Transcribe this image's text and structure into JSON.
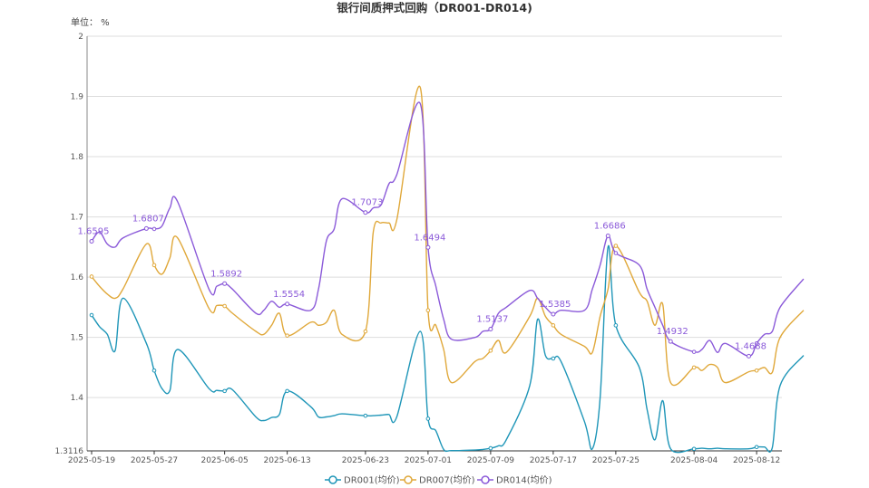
{
  "chart_data": {
    "type": "line",
    "title": "银行间质押式回购（DR001-DR014)",
    "unit_label": "单位： %",
    "ylim": [
      1.3116,
      2.0
    ],
    "yticks": [
      "1.3116",
      "1.4",
      "1.5",
      "1.6",
      "1.7",
      "1.8",
      "1.9",
      "2"
    ],
    "ytick_values": [
      1.3116,
      1.4,
      1.5,
      1.6,
      1.7,
      1.8,
      1.9,
      2.0
    ],
    "xtick_labels": [
      "2025-05-19",
      "2025-05-27",
      "2025-06-05",
      "2025-06-13",
      "2025-06-23",
      "2025-07-01",
      "2025-07-09",
      "2025-07-17",
      "2025-07-25",
      "2025-08-04",
      "2025-08-12"
    ],
    "x": [
      "2025-05-19",
      "2025-05-20",
      "2025-05-21",
      "2025-05-22",
      "2025-05-23",
      "2025-05-26",
      "2025-05-27",
      "2025-05-28",
      "2025-05-29",
      "2025-05-30",
      "2025-06-03",
      "2025-06-04",
      "2025-06-05",
      "2025-06-06",
      "2025-06-09",
      "2025-06-10",
      "2025-06-11",
      "2025-06-12",
      "2025-06-13",
      "2025-06-16",
      "2025-06-17",
      "2025-06-18",
      "2025-06-19",
      "2025-06-20",
      "2025-06-23",
      "2025-06-24",
      "2025-06-25",
      "2025-06-26",
      "2025-06-27",
      "2025-06-30",
      "2025-07-01",
      "2025-07-02",
      "2025-07-03",
      "2025-07-04",
      "2025-07-07",
      "2025-07-08",
      "2025-07-09",
      "2025-07-10",
      "2025-07-11",
      "2025-07-14",
      "2025-07-15",
      "2025-07-16",
      "2025-07-17",
      "2025-07-18",
      "2025-07-21",
      "2025-07-22",
      "2025-07-23",
      "2025-07-24",
      "2025-07-25",
      "2025-07-28",
      "2025-07-29",
      "2025-07-30",
      "2025-07-31",
      "2025-08-01",
      "2025-08-04",
      "2025-08-05",
      "2025-08-06",
      "2025-08-07",
      "2025-08-08",
      "2025-08-11",
      "2025-08-12",
      "2025-08-13",
      "2025-08-14",
      "2025-08-15",
      "2025-08-18"
    ],
    "series": [
      {
        "name": "DR001(均价)",
        "color": "#1f96b8",
        "values": [
          1.537,
          1.518,
          1.505,
          1.478,
          1.565,
          1.49,
          1.445,
          1.415,
          1.412,
          1.48,
          1.415,
          1.412,
          1.411,
          1.413,
          1.368,
          1.362,
          1.367,
          1.372,
          1.411,
          1.385,
          1.368,
          1.368,
          1.37,
          1.373,
          1.37,
          1.37,
          1.371,
          1.372,
          1.368,
          1.51,
          1.365,
          1.345,
          1.314,
          1.312,
          1.313,
          1.314,
          1.316,
          1.32,
          1.33,
          1.42,
          1.53,
          1.47,
          1.465,
          1.46,
          1.36,
          1.315,
          1.4,
          1.65,
          1.52,
          1.45,
          1.38,
          1.33,
          1.395,
          1.315,
          1.315,
          1.316,
          1.315,
          1.316,
          1.315,
          1.315,
          1.318,
          1.318,
          1.317,
          1.42,
          1.47
        ]
      },
      {
        "name": "DR007(均价)",
        "color": "#e0a83a",
        "values": [
          1.601,
          1.585,
          1.572,
          1.565,
          1.58,
          1.655,
          1.62,
          1.605,
          1.632,
          1.665,
          1.548,
          1.553,
          1.552,
          1.54,
          1.51,
          1.505,
          1.52,
          1.54,
          1.503,
          1.525,
          1.52,
          1.525,
          1.545,
          1.505,
          1.51,
          1.675,
          1.69,
          1.69,
          1.695,
          1.915,
          1.545,
          1.52,
          1.48,
          1.425,
          1.46,
          1.465,
          1.478,
          1.495,
          1.475,
          1.535,
          1.565,
          1.535,
          1.52,
          1.505,
          1.485,
          1.475,
          1.535,
          1.58,
          1.652,
          1.575,
          1.56,
          1.52,
          1.555,
          1.425,
          1.45,
          1.445,
          1.455,
          1.45,
          1.425,
          1.443,
          1.445,
          1.45,
          1.442,
          1.5,
          1.545
        ]
      },
      {
        "name": "DR014(均价)",
        "color": "#8b5ad9",
        "values": [
          1.6595,
          1.675,
          1.655,
          1.65,
          1.665,
          1.6807,
          1.68,
          1.685,
          1.715,
          1.725,
          1.58,
          1.585,
          1.5892,
          1.58,
          1.54,
          1.545,
          1.56,
          1.55,
          1.5554,
          1.545,
          1.58,
          1.66,
          1.68,
          1.73,
          1.7073,
          1.715,
          1.72,
          1.755,
          1.77,
          1.888,
          1.6494,
          1.585,
          1.53,
          1.497,
          1.5,
          1.51,
          1.5137,
          1.54,
          1.55,
          1.578,
          1.565,
          1.55,
          1.5385,
          1.545,
          1.545,
          1.58,
          1.62,
          1.6686,
          1.64,
          1.62,
          1.58,
          1.55,
          1.52,
          1.4932,
          1.476,
          1.48,
          1.495,
          1.475,
          1.49,
          1.4688,
          1.49,
          1.505,
          1.51,
          1.55,
          1.597
        ]
      }
    ],
    "data_labels": [
      {
        "series": 2,
        "index": 0,
        "text": "1.6595"
      },
      {
        "series": 2,
        "index": 5,
        "text": "1.6807"
      },
      {
        "series": 2,
        "index": 12,
        "text": "1.5892"
      },
      {
        "series": 2,
        "index": 18,
        "text": "1.5554"
      },
      {
        "series": 2,
        "index": 24,
        "text": "1.7073"
      },
      {
        "series": 2,
        "index": 30,
        "text": "1.6494"
      },
      {
        "series": 2,
        "index": 36,
        "text": "1.5137"
      },
      {
        "series": 2,
        "index": 42,
        "text": "1.5385"
      },
      {
        "series": 2,
        "index": 47,
        "text": "1.6686"
      },
      {
        "series": 2,
        "index": 53,
        "text": "1.4932"
      },
      {
        "series": 2,
        "index": 59,
        "text": "1.4688"
      }
    ],
    "grid": true,
    "legend_position": "bottom-center"
  }
}
